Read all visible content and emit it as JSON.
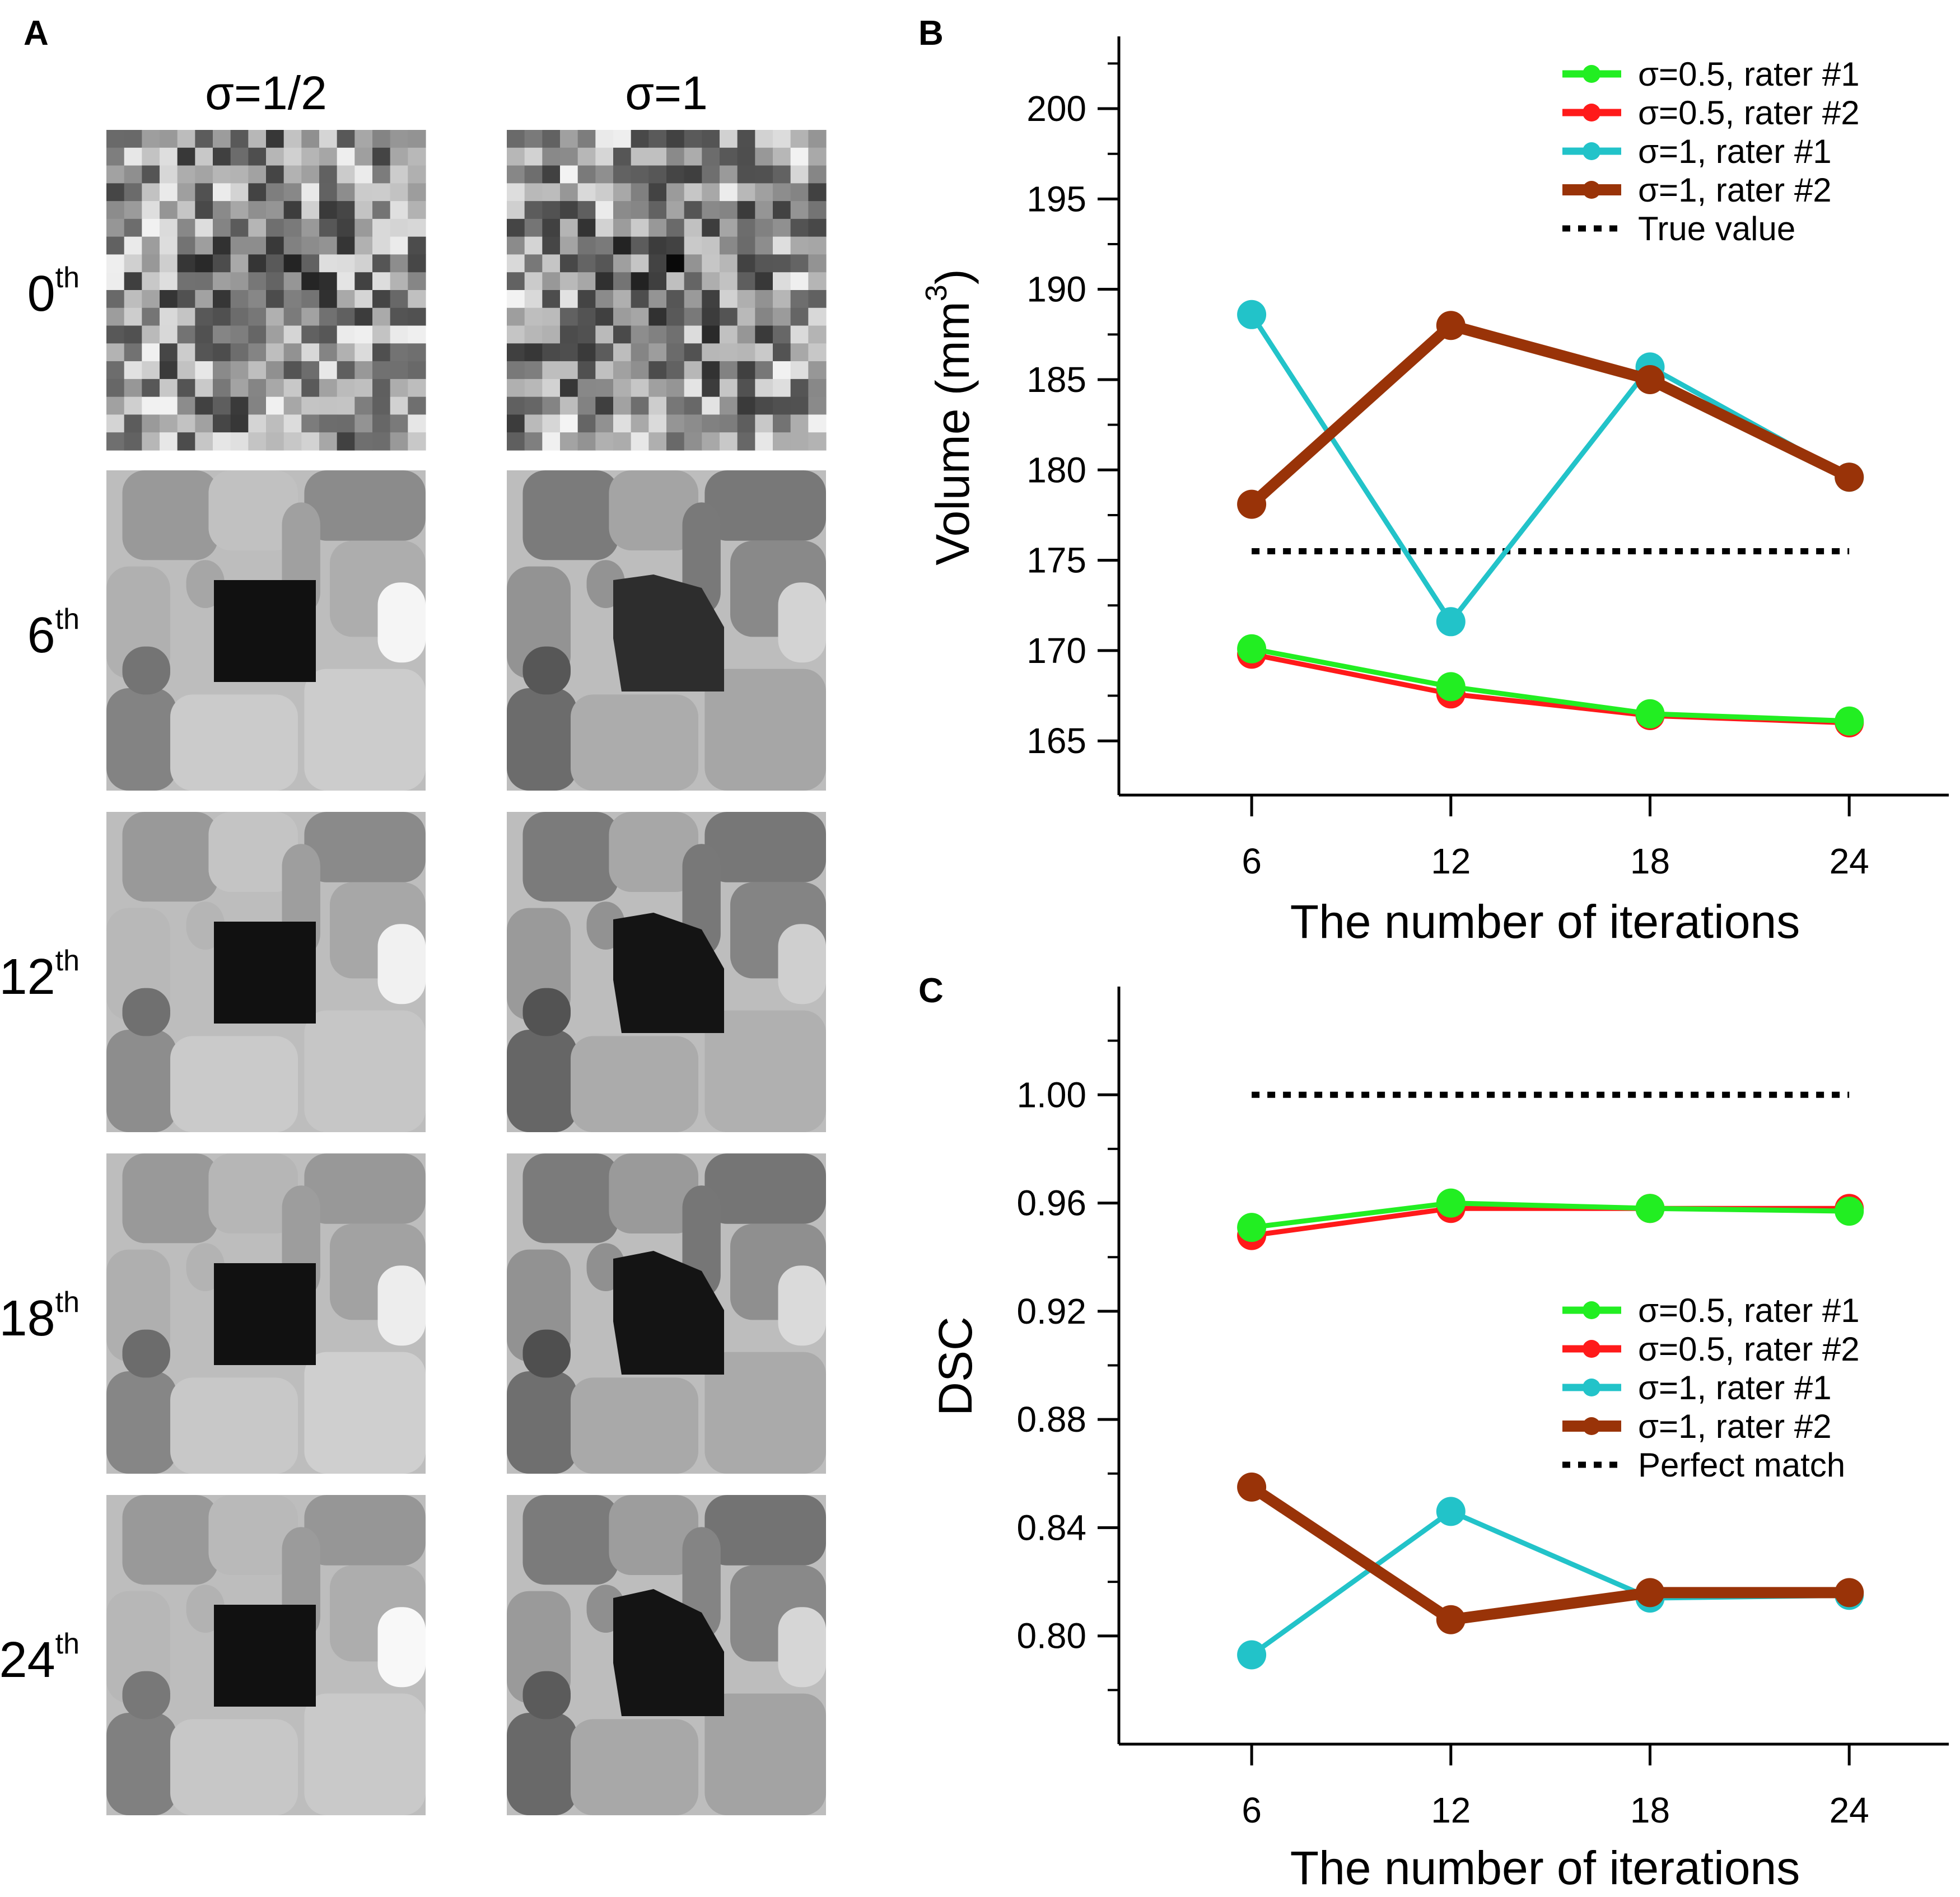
{
  "panel_a": {
    "letter": "A",
    "columns": [
      {
        "title": "σ=1/2",
        "key": "half"
      },
      {
        "title": "σ=1",
        "key": "one"
      }
    ],
    "rows": [
      {
        "base": "0",
        "sup": "th"
      },
      {
        "base": "6",
        "sup": "th"
      },
      {
        "base": "12",
        "sup": "th"
      },
      {
        "base": "18",
        "sup": "th"
      },
      {
        "base": "24",
        "sup": "th"
      }
    ]
  },
  "chart_data": [
    {
      "panel": "B",
      "type": "line",
      "xlabel": "The number of iterations",
      "ylabel": "Volume (mm",
      "ylabel_sup": "3",
      "ylabel_close": ")",
      "x": [
        6,
        12,
        18,
        24
      ],
      "xlim": [
        2,
        27
      ],
      "ylim": [
        162,
        204
      ],
      "yticks": [
        165,
        170,
        175,
        180,
        185,
        190,
        195,
        200
      ],
      "yticks_minor": [
        167.5,
        172.5,
        177.5,
        182.5,
        187.5,
        192.5,
        197.5,
        202.5
      ],
      "legend_position": "top-right",
      "series": [
        {
          "name": "σ=0.5, rater #2",
          "color": "#ff1a1a",
          "values": [
            169.8,
            167.6,
            166.4,
            166.0
          ],
          "weight": "thin"
        },
        {
          "name": "σ=0.5, rater #1",
          "color": "#22ee22",
          "values": [
            170.1,
            168.0,
            166.5,
            166.1
          ],
          "weight": "thin"
        },
        {
          "name": "σ=1, rater #1",
          "color": "#22c3c9",
          "values": [
            188.6,
            171.6,
            185.7,
            179.6
          ],
          "weight": "thin"
        },
        {
          "name": "σ=1, rater #2",
          "color": "#993308",
          "values": [
            178.1,
            188.0,
            185.0,
            179.6
          ],
          "weight": "thick"
        }
      ],
      "reference": {
        "name": "True value",
        "value": 175.5
      },
      "legend_order": [
        "σ=0.5, rater #1",
        "σ=0.5, rater #2",
        "σ=1, rater #1",
        "σ=1, rater #2",
        "True value"
      ]
    },
    {
      "panel": "C",
      "type": "line",
      "xlabel": "The number of iterations",
      "ylabel": "DSC",
      "x": [
        6,
        12,
        18,
        24
      ],
      "xlim": [
        2,
        27
      ],
      "ylim": [
        0.76,
        1.04
      ],
      "yticks": [
        "0.80",
        "0.84",
        "0.88",
        "0.92",
        "0.96",
        "1.00"
      ],
      "yticks_minor": [
        0.78,
        0.82,
        0.86,
        0.9,
        0.94,
        0.98,
        1.02
      ],
      "legend_position": "center-right",
      "series": [
        {
          "name": "σ=0.5, rater #2",
          "color": "#ff1a1a",
          "values": [
            0.948,
            0.958,
            0.958,
            0.958
          ],
          "weight": "thin"
        },
        {
          "name": "σ=0.5, rater #1",
          "color": "#22ee22",
          "values": [
            0.951,
            0.96,
            0.958,
            0.957
          ],
          "weight": "thin"
        },
        {
          "name": "σ=1, rater #1",
          "color": "#22c3c9",
          "values": [
            0.793,
            0.846,
            0.814,
            0.815
          ],
          "weight": "thin"
        },
        {
          "name": "σ=1, rater #2",
          "color": "#993308",
          "values": [
            0.855,
            0.806,
            0.816,
            0.816
          ],
          "weight": "thick"
        }
      ],
      "reference": {
        "name": "Perfect match",
        "value": 1.0
      },
      "legend_order": [
        "σ=0.5, rater #1",
        "σ=0.5, rater #2",
        "σ=1, rater #1",
        "σ=1, rater #2",
        "Perfect match"
      ]
    }
  ]
}
